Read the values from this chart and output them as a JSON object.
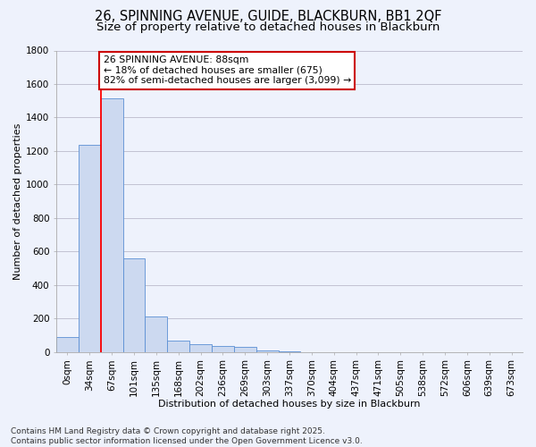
{
  "title": "26, SPINNING AVENUE, GUIDE, BLACKBURN, BB1 2QF",
  "subtitle": "Size of property relative to detached houses in Blackburn",
  "xlabel": "Distribution of detached houses by size in Blackburn",
  "ylabel": "Number of detached properties",
  "categories": [
    "0sqm",
    "34sqm",
    "67sqm",
    "101sqm",
    "135sqm",
    "168sqm",
    "202sqm",
    "236sqm",
    "269sqm",
    "303sqm",
    "337sqm",
    "370sqm",
    "404sqm",
    "437sqm",
    "471sqm",
    "505sqm",
    "538sqm",
    "572sqm",
    "606sqm",
    "639sqm",
    "673sqm"
  ],
  "values": [
    90,
    1235,
    1515,
    560,
    210,
    65,
    45,
    35,
    28,
    10,
    5,
    0,
    0,
    0,
    0,
    0,
    0,
    0,
    0,
    0,
    0
  ],
  "bar_color": "#ccd9f0",
  "bar_edge_color": "#5b8fd4",
  "grid_color": "#bbbbcc",
  "background_color": "#eef2fc",
  "annotation_line1": "26 SPINNING AVENUE: 88sqm",
  "annotation_line2": "← 18% of detached houses are smaller (675)",
  "annotation_line3": "82% of semi-detached houses are larger (3,099) →",
  "annotation_box_color": "#cc0000",
  "property_line_x": 1.5,
  "ylim": [
    0,
    1800
  ],
  "yticks": [
    0,
    200,
    400,
    600,
    800,
    1000,
    1200,
    1400,
    1600,
    1800
  ],
  "footer": "Contains HM Land Registry data © Crown copyright and database right 2025.\nContains public sector information licensed under the Open Government Licence v3.0.",
  "title_fontsize": 10.5,
  "subtitle_fontsize": 9.5,
  "axis_label_fontsize": 8,
  "tick_fontsize": 7.5,
  "annotation_fontsize": 7.8,
  "footer_fontsize": 6.5
}
